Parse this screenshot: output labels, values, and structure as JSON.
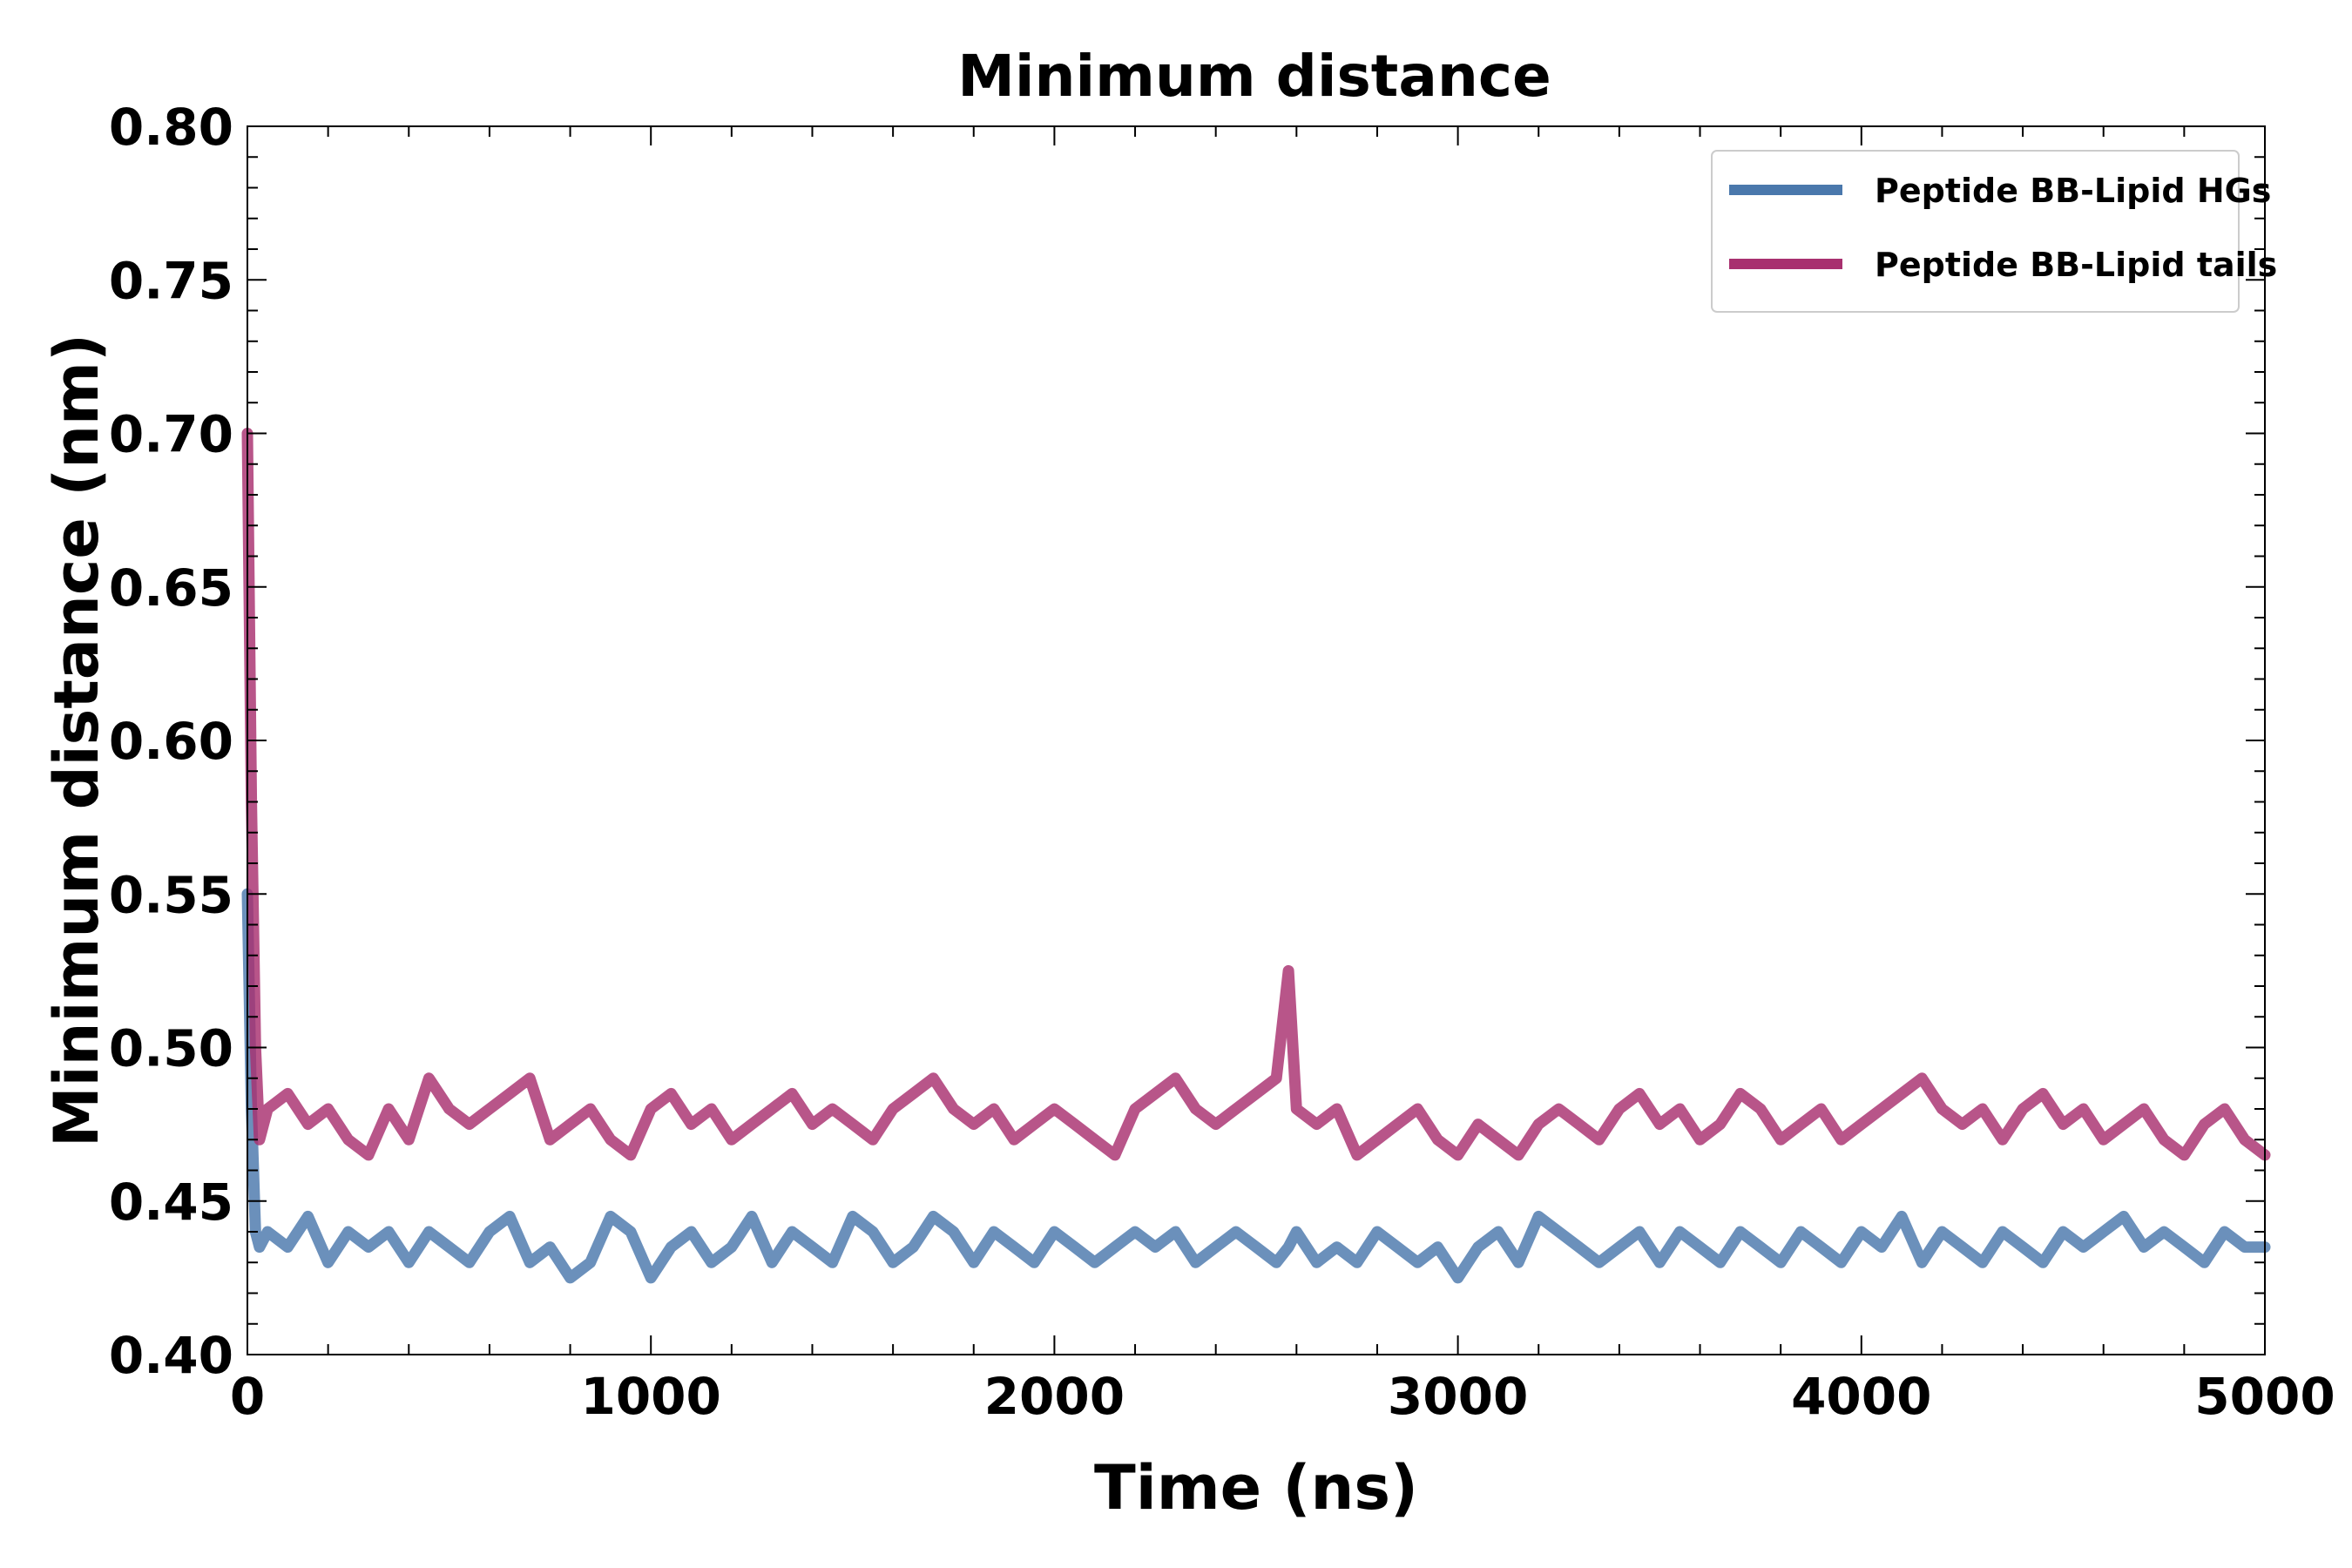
{
  "chart_data": {
    "type": "line",
    "title": "Minimum distance",
    "xlabel": "Time (ns)",
    "ylabel": "Minimum distance (nm)",
    "xlim": [
      0,
      5000
    ],
    "ylim": [
      0.4,
      0.8
    ],
    "x_ticks": [
      0,
      1000,
      2000,
      3000,
      4000,
      5000
    ],
    "x_tick_labels": [
      "0",
      "1000",
      "2000",
      "3000",
      "4000",
      "5000"
    ],
    "y_ticks": [
      0.4,
      0.45,
      0.5,
      0.55,
      0.6,
      0.65,
      0.7,
      0.75,
      0.8
    ],
    "y_tick_labels": [
      "0.40",
      "0.45",
      "0.50",
      "0.55",
      "0.60",
      "0.65",
      "0.70",
      "0.75",
      "0.80"
    ],
    "grid": false,
    "legend_position": "top-right",
    "x": [
      0,
      10,
      20,
      30,
      50,
      100,
      150,
      200,
      250,
      300,
      350,
      400,
      450,
      500,
      550,
      600,
      650,
      700,
      750,
      800,
      850,
      900,
      950,
      1000,
      1050,
      1100,
      1150,
      1200,
      1250,
      1300,
      1350,
      1400,
      1450,
      1500,
      1550,
      1600,
      1650,
      1700,
      1750,
      1800,
      1850,
      1900,
      1950,
      2000,
      2050,
      2100,
      2150,
      2200,
      2250,
      2300,
      2350,
      2400,
      2450,
      2500,
      2550,
      2580,
      2600,
      2650,
      2700,
      2750,
      2800,
      2850,
      2900,
      2950,
      3000,
      3050,
      3100,
      3150,
      3200,
      3250,
      3300,
      3350,
      3400,
      3450,
      3500,
      3550,
      3600,
      3650,
      3700,
      3750,
      3800,
      3850,
      3900,
      3950,
      4000,
      4050,
      4100,
      4150,
      4200,
      4250,
      4300,
      4350,
      4400,
      4450,
      4500,
      4550,
      4600,
      4650,
      4700,
      4750,
      4800,
      4850,
      4900,
      4950,
      5000
    ],
    "series": [
      {
        "name": "Peptide BB-Lipid HGs",
        "color": "#4a78ac",
        "values": [
          0.55,
          0.48,
          0.44,
          0.435,
          0.44,
          0.435,
          0.445,
          0.43,
          0.44,
          0.435,
          0.44,
          0.43,
          0.44,
          0.435,
          0.43,
          0.44,
          0.445,
          0.43,
          0.435,
          0.425,
          0.43,
          0.445,
          0.44,
          0.425,
          0.435,
          0.44,
          0.43,
          0.435,
          0.445,
          0.43,
          0.44,
          0.435,
          0.43,
          0.445,
          0.44,
          0.43,
          0.435,
          0.445,
          0.44,
          0.43,
          0.44,
          0.435,
          0.43,
          0.44,
          0.435,
          0.43,
          0.435,
          0.44,
          0.435,
          0.44,
          0.43,
          0.435,
          0.44,
          0.435,
          0.43,
          0.435,
          0.44,
          0.43,
          0.435,
          0.43,
          0.44,
          0.435,
          0.43,
          0.435,
          0.425,
          0.435,
          0.44,
          0.43,
          0.445,
          0.44,
          0.435,
          0.43,
          0.435,
          0.44,
          0.43,
          0.44,
          0.435,
          0.43,
          0.44,
          0.435,
          0.43,
          0.44,
          0.435,
          0.43,
          0.44,
          0.435,
          0.445,
          0.43,
          0.44,
          0.435,
          0.43,
          0.44,
          0.435,
          0.43,
          0.44,
          0.435,
          0.44,
          0.445,
          0.435,
          0.44,
          0.435,
          0.43,
          0.44,
          0.435,
          0.435
        ]
      },
      {
        "name": "Peptide BB-Lipid tails",
        "color": "#a8306f",
        "values": [
          0.7,
          0.58,
          0.5,
          0.47,
          0.48,
          0.485,
          0.475,
          0.48,
          0.47,
          0.465,
          0.48,
          0.47,
          0.49,
          0.48,
          0.475,
          0.48,
          0.485,
          0.49,
          0.47,
          0.475,
          0.48,
          0.47,
          0.465,
          0.48,
          0.485,
          0.475,
          0.48,
          0.47,
          0.475,
          0.48,
          0.485,
          0.475,
          0.48,
          0.475,
          0.47,
          0.48,
          0.485,
          0.49,
          0.48,
          0.475,
          0.48,
          0.47,
          0.475,
          0.48,
          0.475,
          0.47,
          0.465,
          0.48,
          0.485,
          0.49,
          0.48,
          0.475,
          0.48,
          0.485,
          0.49,
          0.525,
          0.48,
          0.475,
          0.48,
          0.465,
          0.47,
          0.475,
          0.48,
          0.47,
          0.465,
          0.475,
          0.47,
          0.465,
          0.475,
          0.48,
          0.475,
          0.47,
          0.48,
          0.485,
          0.475,
          0.48,
          0.47,
          0.475,
          0.485,
          0.48,
          0.47,
          0.475,
          0.48,
          0.47,
          0.475,
          0.48,
          0.485,
          0.49,
          0.48,
          0.475,
          0.48,
          0.47,
          0.48,
          0.485,
          0.475,
          0.48,
          0.47,
          0.475,
          0.48,
          0.47,
          0.465,
          0.475,
          0.48,
          0.47,
          0.465
        ]
      }
    ]
  }
}
